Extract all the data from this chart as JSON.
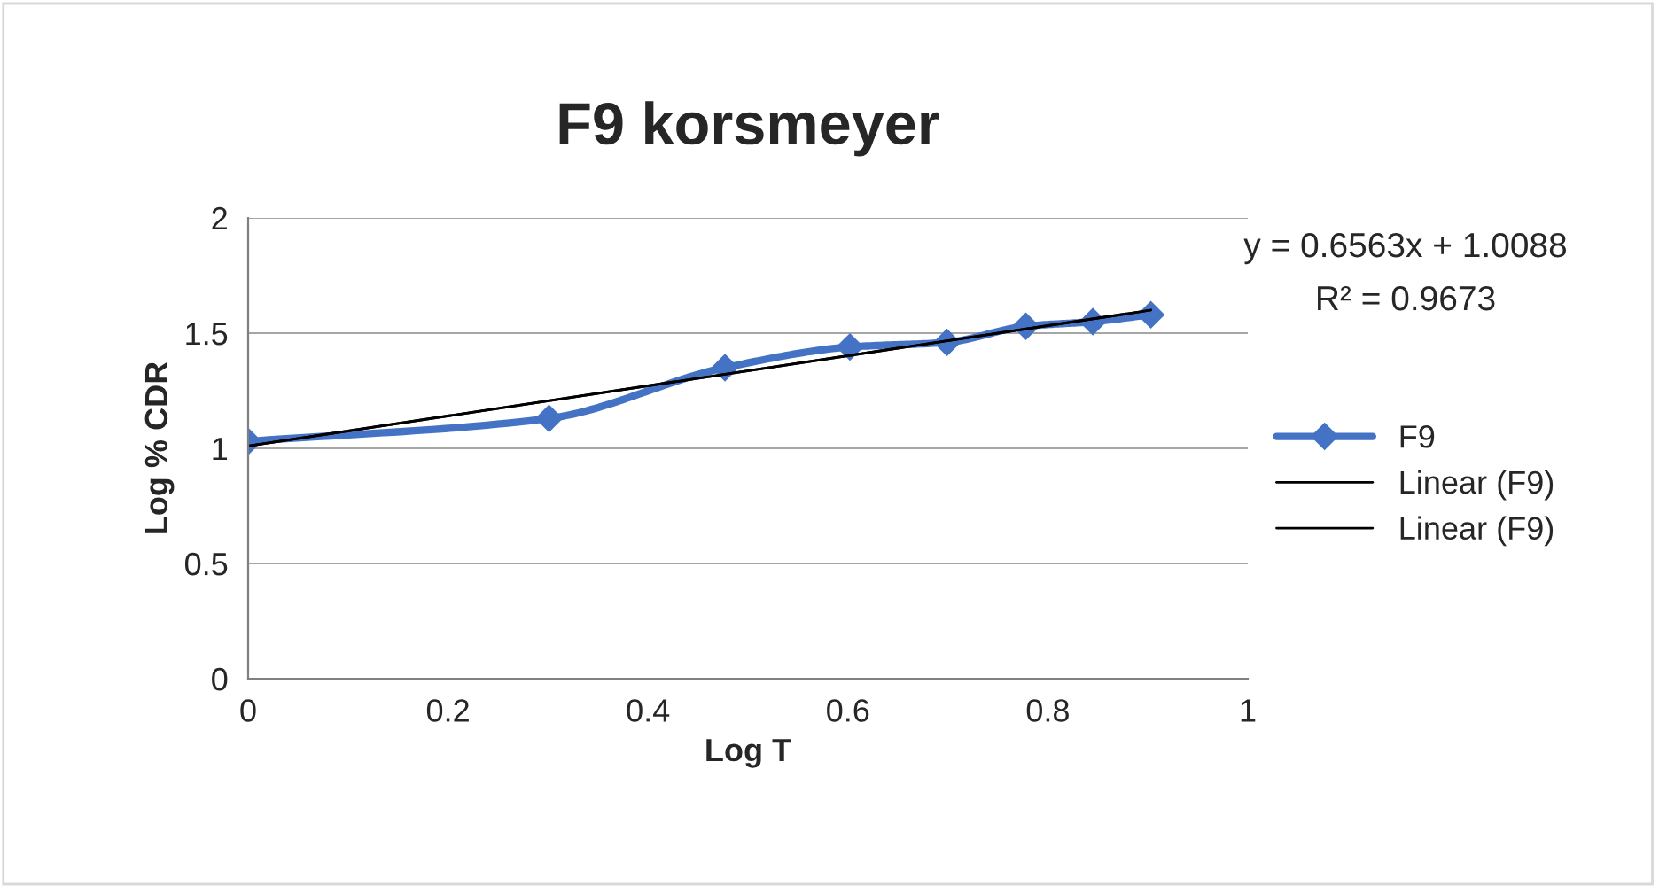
{
  "chart_data": {
    "type": "line",
    "title": "F9 korsmeyer",
    "xlabel": "Log T",
    "ylabel": "Log % CDR",
    "series": [
      {
        "name": "F9",
        "color": "#4472c4",
        "x": [
          0,
          0.301,
          0.477,
          0.602,
          0.699,
          0.778,
          0.845,
          0.903
        ],
        "values": [
          1.03,
          1.13,
          1.35,
          1.44,
          1.46,
          1.53,
          1.55,
          1.58
        ],
        "marker": "diamond"
      },
      {
        "name": "Linear (F9)",
        "color": "#000000",
        "x": [
          0,
          0.903
        ],
        "values": [
          1.01,
          1.6
        ],
        "marker": "none"
      },
      {
        "name": "Linear (F9)",
        "color": "#000000",
        "x": [
          0,
          0.903
        ],
        "values": [
          1.01,
          1.6
        ],
        "marker": "none"
      }
    ],
    "xlim": [
      0,
      1
    ],
    "xticks": [
      0,
      0.2,
      0.4,
      0.6,
      0.8,
      1
    ],
    "ylim": [
      0,
      2
    ],
    "yticks": [
      0,
      0.5,
      1,
      1.5,
      2
    ],
    "grid": "y",
    "legend": "right",
    "line_style": "solid",
    "annotations": [
      "y = 0.6563x + 1.0088",
      "R² = 0.9673"
    ]
  }
}
